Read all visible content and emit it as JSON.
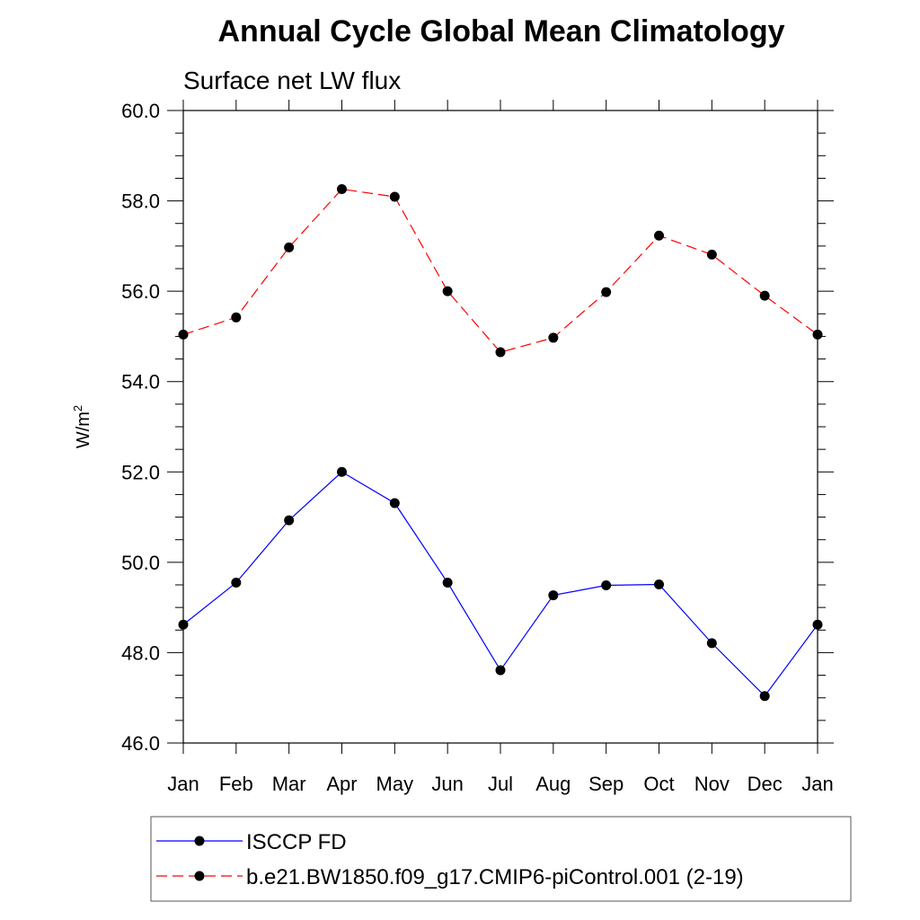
{
  "chart_data": {
    "type": "line",
    "title": "Annual Cycle Global Mean Climatology",
    "subtitle": "Surface net LW flux",
    "ylabel": "W/m",
    "ylabel_sup": "2",
    "ylim": [
      46.0,
      60.0
    ],
    "yticks": [
      "46.0",
      "48.0",
      "50.0",
      "52.0",
      "54.0",
      "56.0",
      "58.0",
      "60.0"
    ],
    "categories": [
      "Jan",
      "Feb",
      "Mar",
      "Apr",
      "May",
      "Jun",
      "Jul",
      "Aug",
      "Sep",
      "Oct",
      "Nov",
      "Dec",
      "Jan"
    ],
    "series": [
      {
        "name": "ISCCP FD",
        "color": "#0000ff",
        "dashed": false,
        "values": [
          48.62,
          49.55,
          50.93,
          52.0,
          51.31,
          49.55,
          47.61,
          49.27,
          49.49,
          49.51,
          48.21,
          47.04,
          48.62
        ]
      },
      {
        "name": "b.e21.BW1850.f09_g17.CMIP6-piControl.001 (2-19)",
        "color": "#ff0000",
        "dashed": true,
        "values": [
          55.04,
          55.42,
          56.97,
          58.26,
          58.09,
          56.0,
          54.65,
          54.97,
          55.98,
          57.23,
          56.81,
          55.9,
          55.04
        ]
      }
    ],
    "legend_position": "bottom",
    "grid": false
  }
}
